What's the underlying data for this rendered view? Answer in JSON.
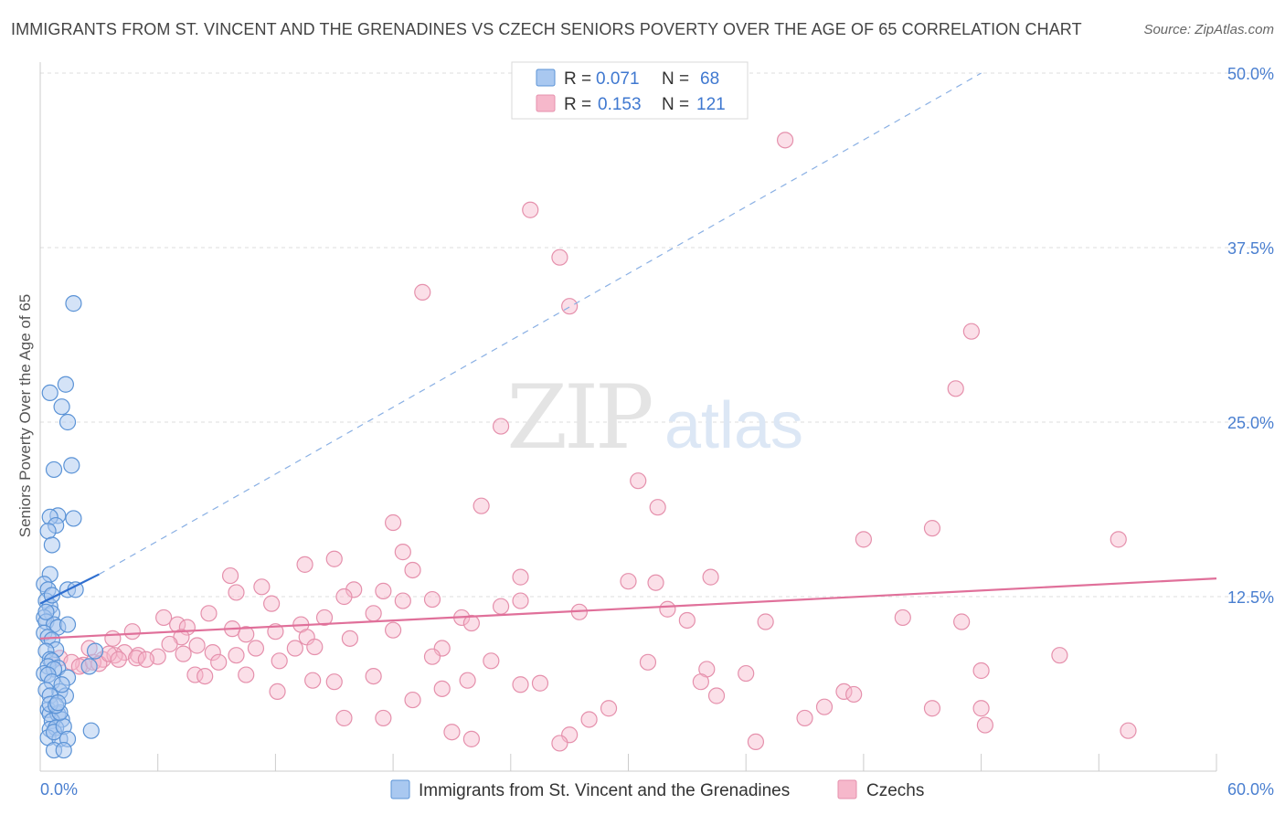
{
  "title": "IMMIGRANTS FROM ST. VINCENT AND THE GRENADINES VS CZECH SENIORS POVERTY OVER THE AGE OF 65 CORRELATION CHART",
  "source": "Source: ZipAtlas.com",
  "watermark": {
    "zip": "ZIP",
    "atlas": "atlas"
  },
  "colors": {
    "blue_fill": "#a9c8f0",
    "blue_stroke": "#5b93d6",
    "blue_line": "#2f6fd0",
    "pink_fill": "#f6b8cb",
    "pink_stroke": "#e590ac",
    "pink_line": "#e0709a",
    "tick_label": "#4a7fd0",
    "grid": "#dddddd"
  },
  "legend_stats": [
    {
      "r_label": "R =",
      "r_value": "0.071",
      "n_label": "N =",
      "n_value": "68"
    },
    {
      "r_label": "R =",
      "r_value": "0.153",
      "n_label": "N =",
      "n_value": "121"
    }
  ],
  "chart_data": {
    "type": "scatter",
    "title": "IMMIGRANTS FROM ST. VINCENT AND THE GRENADINES VS CZECH SENIORS POVERTY OVER THE AGE OF 65 CORRELATION CHART",
    "xlabel": "",
    "ylabel": "Seniors Poverty Over the Age of 65",
    "xlim": [
      0,
      60
    ],
    "ylim": [
      0,
      50
    ],
    "x_tick_labels": [
      "0.0%",
      "60.0%"
    ],
    "y_ticks": [
      12.5,
      25.0,
      37.5,
      50.0
    ],
    "y_tick_labels": [
      "12.5%",
      "25.0%",
      "37.5%",
      "50.0%"
    ],
    "grid": true,
    "legend_position": "bottom",
    "series": [
      {
        "name": "Immigrants from St. Vincent and the Grenadines",
        "r": 0.071,
        "n": 68,
        "trend": {
          "x": [
            0,
            3.0
          ],
          "y": [
            12.0,
            14.1
          ]
        },
        "trend_extended": {
          "x": [
            3.0,
            48.0
          ],
          "y": [
            14.1,
            50.0
          ]
        },
        "points": [
          [
            1.7,
            33.5
          ],
          [
            1.3,
            27.7
          ],
          [
            0.5,
            27.1
          ],
          [
            1.1,
            26.1
          ],
          [
            1.4,
            25.0
          ],
          [
            1.6,
            21.9
          ],
          [
            0.7,
            21.6
          ],
          [
            0.9,
            18.3
          ],
          [
            0.5,
            18.2
          ],
          [
            1.7,
            18.1
          ],
          [
            0.8,
            17.6
          ],
          [
            0.4,
            17.2
          ],
          [
            0.6,
            16.2
          ],
          [
            0.5,
            14.1
          ],
          [
            0.2,
            13.4
          ],
          [
            0.4,
            13.0
          ],
          [
            1.4,
            13.0
          ],
          [
            1.8,
            13.0
          ],
          [
            0.3,
            12.2
          ],
          [
            0.5,
            11.8
          ],
          [
            0.6,
            11.3
          ],
          [
            0.2,
            11.0
          ],
          [
            0.3,
            10.7
          ],
          [
            0.7,
            10.5
          ],
          [
            0.9,
            10.3
          ],
          [
            1.4,
            10.5
          ],
          [
            0.2,
            9.9
          ],
          [
            0.4,
            9.6
          ],
          [
            0.6,
            9.4
          ],
          [
            0.8,
            8.7
          ],
          [
            0.3,
            8.6
          ],
          [
            2.8,
            8.6
          ],
          [
            0.5,
            8.0
          ],
          [
            0.6,
            7.9
          ],
          [
            0.4,
            7.5
          ],
          [
            0.9,
            7.4
          ],
          [
            0.7,
            7.3
          ],
          [
            2.5,
            7.5
          ],
          [
            0.2,
            7.0
          ],
          [
            0.4,
            6.9
          ],
          [
            1.4,
            6.7
          ],
          [
            0.6,
            6.4
          ],
          [
            0.3,
            5.8
          ],
          [
            1.0,
            5.7
          ],
          [
            0.5,
            5.4
          ],
          [
            1.3,
            5.4
          ],
          [
            0.4,
            4.4
          ],
          [
            0.5,
            4.1
          ],
          [
            0.9,
            4.1
          ],
          [
            1.1,
            3.7
          ],
          [
            0.6,
            3.6
          ],
          [
            0.5,
            3.0
          ],
          [
            0.8,
            3.1
          ],
          [
            0.4,
            2.4
          ],
          [
            1.0,
            2.3
          ],
          [
            0.7,
            2.8
          ],
          [
            1.2,
            3.2
          ],
          [
            1.0,
            4.2
          ],
          [
            0.5,
            4.8
          ],
          [
            0.8,
            4.7
          ],
          [
            0.9,
            4.9
          ],
          [
            2.6,
            2.9
          ],
          [
            1.4,
            2.3
          ],
          [
            0.7,
            1.5
          ],
          [
            1.2,
            1.5
          ],
          [
            0.3,
            11.4
          ],
          [
            0.6,
            12.6
          ],
          [
            1.1,
            6.2
          ]
        ]
      },
      {
        "name": "Czechs",
        "r": 0.153,
        "n": 121,
        "trend": {
          "x": [
            0,
            60
          ],
          "y": [
            9.5,
            13.8
          ]
        },
        "points": [
          [
            38.0,
            45.2
          ],
          [
            25.0,
            40.2
          ],
          [
            26.5,
            36.8
          ],
          [
            19.5,
            34.3
          ],
          [
            27.0,
            33.3
          ],
          [
            47.5,
            31.5
          ],
          [
            46.7,
            27.4
          ],
          [
            23.5,
            24.7
          ],
          [
            30.5,
            20.8
          ],
          [
            22.5,
            19.0
          ],
          [
            31.5,
            18.9
          ],
          [
            18.0,
            17.8
          ],
          [
            45.5,
            17.4
          ],
          [
            42.0,
            16.6
          ],
          [
            55.0,
            16.6
          ],
          [
            18.5,
            15.7
          ],
          [
            15.0,
            15.2
          ],
          [
            13.5,
            14.8
          ],
          [
            19.0,
            14.4
          ],
          [
            9.7,
            14.0
          ],
          [
            24.5,
            13.9
          ],
          [
            30.0,
            13.6
          ],
          [
            31.4,
            13.5
          ],
          [
            34.2,
            13.9
          ],
          [
            11.3,
            13.2
          ],
          [
            16.0,
            13.0
          ],
          [
            17.5,
            12.9
          ],
          [
            10.0,
            12.8
          ],
          [
            15.5,
            12.5
          ],
          [
            18.5,
            12.2
          ],
          [
            20.0,
            12.3
          ],
          [
            24.5,
            12.2
          ],
          [
            11.8,
            12.0
          ],
          [
            23.5,
            11.8
          ],
          [
            27.5,
            11.4
          ],
          [
            17.0,
            11.3
          ],
          [
            32.0,
            11.6
          ],
          [
            8.6,
            11.3
          ],
          [
            14.5,
            11.0
          ],
          [
            21.5,
            11.0
          ],
          [
            6.3,
            11.0
          ],
          [
            22.0,
            10.6
          ],
          [
            13.3,
            10.5
          ],
          [
            37.0,
            10.7
          ],
          [
            33.0,
            10.8
          ],
          [
            44.0,
            11.0
          ],
          [
            47.0,
            10.7
          ],
          [
            7.0,
            10.5
          ],
          [
            7.5,
            10.3
          ],
          [
            9.8,
            10.2
          ],
          [
            12.0,
            10.0
          ],
          [
            18.0,
            10.1
          ],
          [
            4.7,
            10.0
          ],
          [
            10.5,
            9.8
          ],
          [
            13.6,
            9.6
          ],
          [
            15.8,
            9.5
          ],
          [
            3.7,
            9.5
          ],
          [
            7.2,
            9.6
          ],
          [
            6.6,
            9.1
          ],
          [
            8.0,
            9.0
          ],
          [
            11.0,
            8.8
          ],
          [
            13.0,
            8.8
          ],
          [
            14.0,
            8.9
          ],
          [
            20.5,
            8.8
          ],
          [
            2.5,
            8.8
          ],
          [
            4.3,
            8.5
          ],
          [
            5.0,
            8.3
          ],
          [
            6.0,
            8.2
          ],
          [
            7.3,
            8.4
          ],
          [
            8.8,
            8.5
          ],
          [
            10.0,
            8.3
          ],
          [
            20.0,
            8.2
          ],
          [
            52.0,
            8.3
          ],
          [
            1.0,
            8.1
          ],
          [
            3.2,
            8.0
          ],
          [
            3.8,
            8.3
          ],
          [
            4.9,
            8.1
          ],
          [
            5.4,
            8.0
          ],
          [
            9.1,
            7.8
          ],
          [
            12.2,
            7.9
          ],
          [
            2.2,
            7.6
          ],
          [
            1.6,
            7.8
          ],
          [
            2.0,
            7.5
          ],
          [
            2.7,
            7.8
          ],
          [
            3.0,
            7.7
          ],
          [
            3.5,
            8.4
          ],
          [
            4.0,
            8.0
          ],
          [
            23.0,
            7.9
          ],
          [
            31.0,
            7.8
          ],
          [
            34.0,
            7.3
          ],
          [
            36.0,
            7.0
          ],
          [
            48.0,
            7.2
          ],
          [
            7.9,
            6.9
          ],
          [
            8.4,
            6.8
          ],
          [
            10.5,
            6.9
          ],
          [
            17.0,
            6.8
          ],
          [
            13.9,
            6.5
          ],
          [
            15.0,
            6.4
          ],
          [
            21.8,
            6.5
          ],
          [
            24.5,
            6.2
          ],
          [
            25.5,
            6.3
          ],
          [
            33.7,
            6.4
          ],
          [
            12.1,
            5.7
          ],
          [
            20.5,
            5.9
          ],
          [
            34.5,
            5.4
          ],
          [
            41.0,
            5.7
          ],
          [
            41.5,
            5.5
          ],
          [
            19.0,
            5.1
          ],
          [
            29.0,
            4.5
          ],
          [
            40.0,
            4.6
          ],
          [
            45.5,
            4.5
          ],
          [
            48.0,
            4.5
          ],
          [
            15.5,
            3.8
          ],
          [
            17.5,
            3.8
          ],
          [
            28.0,
            3.7
          ],
          [
            39.0,
            3.8
          ],
          [
            48.2,
            3.3
          ],
          [
            21.0,
            2.8
          ],
          [
            27.0,
            2.6
          ],
          [
            22.0,
            2.3
          ],
          [
            26.5,
            2.0
          ],
          [
            36.5,
            2.1
          ],
          [
            55.5,
            2.9
          ]
        ]
      }
    ]
  }
}
